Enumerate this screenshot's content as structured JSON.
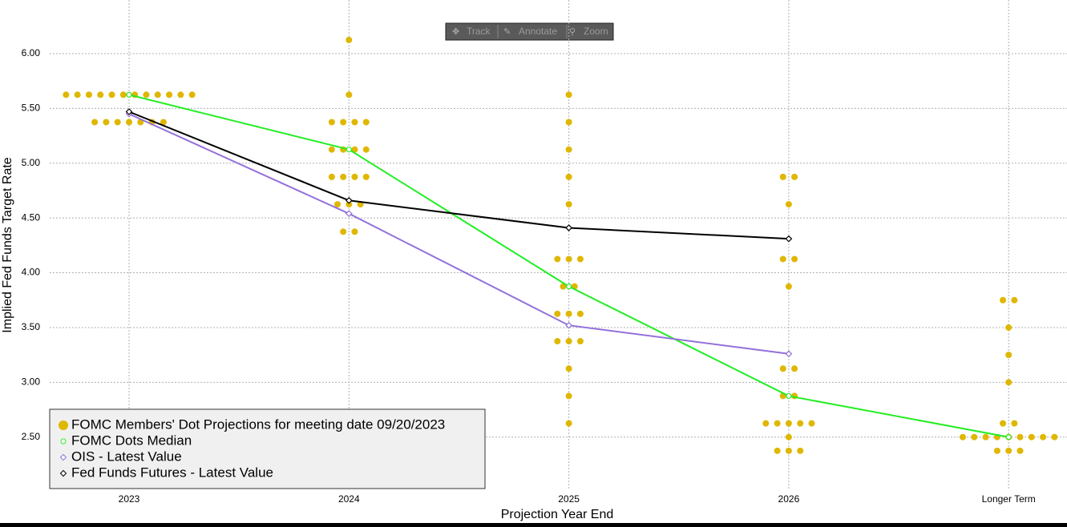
{
  "toolbar": {
    "buttons": [
      "Track",
      "Annotate",
      "Zoom"
    ]
  },
  "chart_data": {
    "type": "dot-plot",
    "x_label": "Projection Year End",
    "y_label": "Implied Fed Funds Target Rate",
    "categories": [
      "2023",
      "2024",
      "2025",
      "2026",
      "Longer Term"
    ],
    "ylim": [
      2.03,
      6.49
    ],
    "yticks": [
      {
        "value": 2.5,
        "label": "2.50"
      },
      {
        "value": 3,
        "label": "3.00"
      },
      {
        "value": 3.5,
        "label": "3.50"
      },
      {
        "value": 4,
        "label": "4.00"
      },
      {
        "value": 4.5,
        "label": "4.50"
      },
      {
        "value": 5,
        "label": "5.00"
      },
      {
        "value": 5.5,
        "label": "5.50"
      },
      {
        "value": 6,
        "label": "6.00"
      }
    ],
    "grid": true,
    "legend": "bottom-left",
    "series": [
      {
        "name": "FOMC Members' Dot Projections for meeting date 09/20/2023",
        "kind": "dots",
        "color": "#dfb700",
        "values": [
          [
            5.625,
            5.625,
            5.625,
            5.625,
            5.625,
            5.625,
            5.625,
            5.625,
            5.625,
            5.625,
            5.625,
            5.625,
            5.375,
            5.375,
            5.375,
            5.375,
            5.375,
            5.375,
            5.375
          ],
          [
            6.125,
            5.625,
            5.375,
            5.375,
            5.375,
            5.375,
            5.125,
            5.125,
            5.125,
            5.125,
            4.875,
            4.875,
            4.875,
            4.875,
            4.625,
            4.625,
            4.625,
            4.375,
            4.375
          ],
          [
            5.625,
            5.375,
            5.125,
            4.875,
            4.625,
            4.125,
            4.125,
            4.125,
            3.875,
            3.875,
            3.625,
            3.625,
            3.625,
            3.375,
            3.375,
            3.375,
            3.125,
            2.875,
            2.625
          ],
          [
            4.875,
            4.875,
            4.625,
            4.125,
            4.125,
            3.875,
            3.125,
            3.125,
            2.875,
            2.875,
            2.625,
            2.625,
            2.625,
            2.625,
            2.625,
            2.5,
            2.375,
            2.375,
            2.375
          ],
          [
            3.75,
            3.75,
            3.5,
            3.25,
            3.0,
            2.625,
            2.625,
            2.5,
            2.5,
            2.5,
            2.5,
            2.5,
            2.5,
            2.5,
            2.5,
            2.5,
            2.375,
            2.375,
            2.375
          ]
        ]
      },
      {
        "name": "FOMC Dots Median",
        "kind": "line",
        "marker": "circle",
        "color": "#22ee22",
        "values": [
          5.625,
          5.125,
          3.875,
          2.875,
          2.5
        ]
      },
      {
        "name": "OIS - Latest Value",
        "kind": "line",
        "marker": "diamond",
        "color": "#9370db",
        "values": [
          5.45,
          4.54,
          3.52,
          3.26,
          null
        ]
      },
      {
        "name": "Fed Funds Futures - Latest Value",
        "kind": "line",
        "marker": "diamond",
        "color": "#000000",
        "values": [
          5.47,
          4.66,
          4.41,
          4.31,
          null
        ]
      }
    ]
  }
}
